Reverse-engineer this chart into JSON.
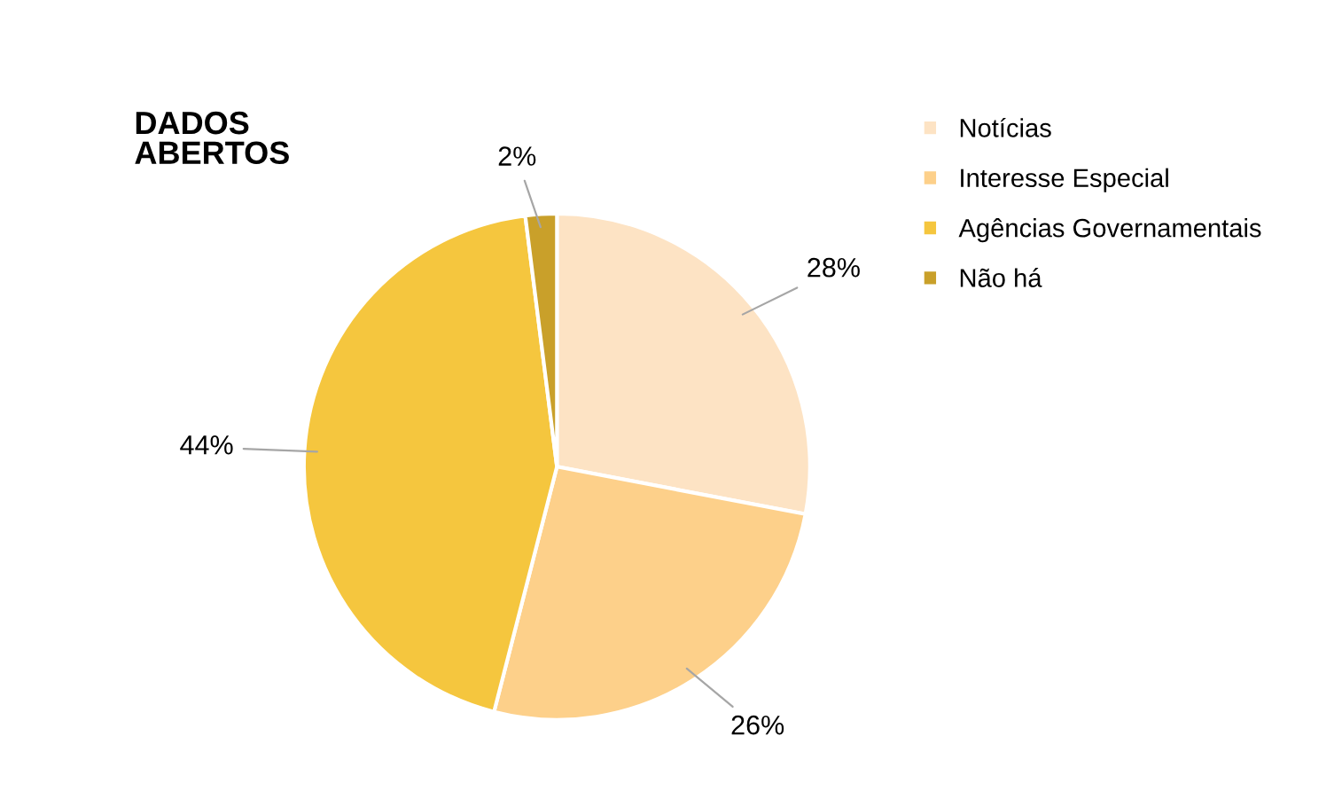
{
  "chart_data": {
    "type": "pie",
    "title": "DADOS\nABERTOS",
    "categories": [
      "Notícias",
      "Interesse Especial",
      "Agências Governamentais",
      "Não há"
    ],
    "values": [
      28,
      26,
      44,
      2
    ],
    "value_labels": [
      "28%",
      "26%",
      "44%",
      "2%"
    ],
    "colors": [
      "#fde3c4",
      "#fdd08a",
      "#f5c63e",
      "#c9a02a"
    ],
    "legend": "right"
  }
}
